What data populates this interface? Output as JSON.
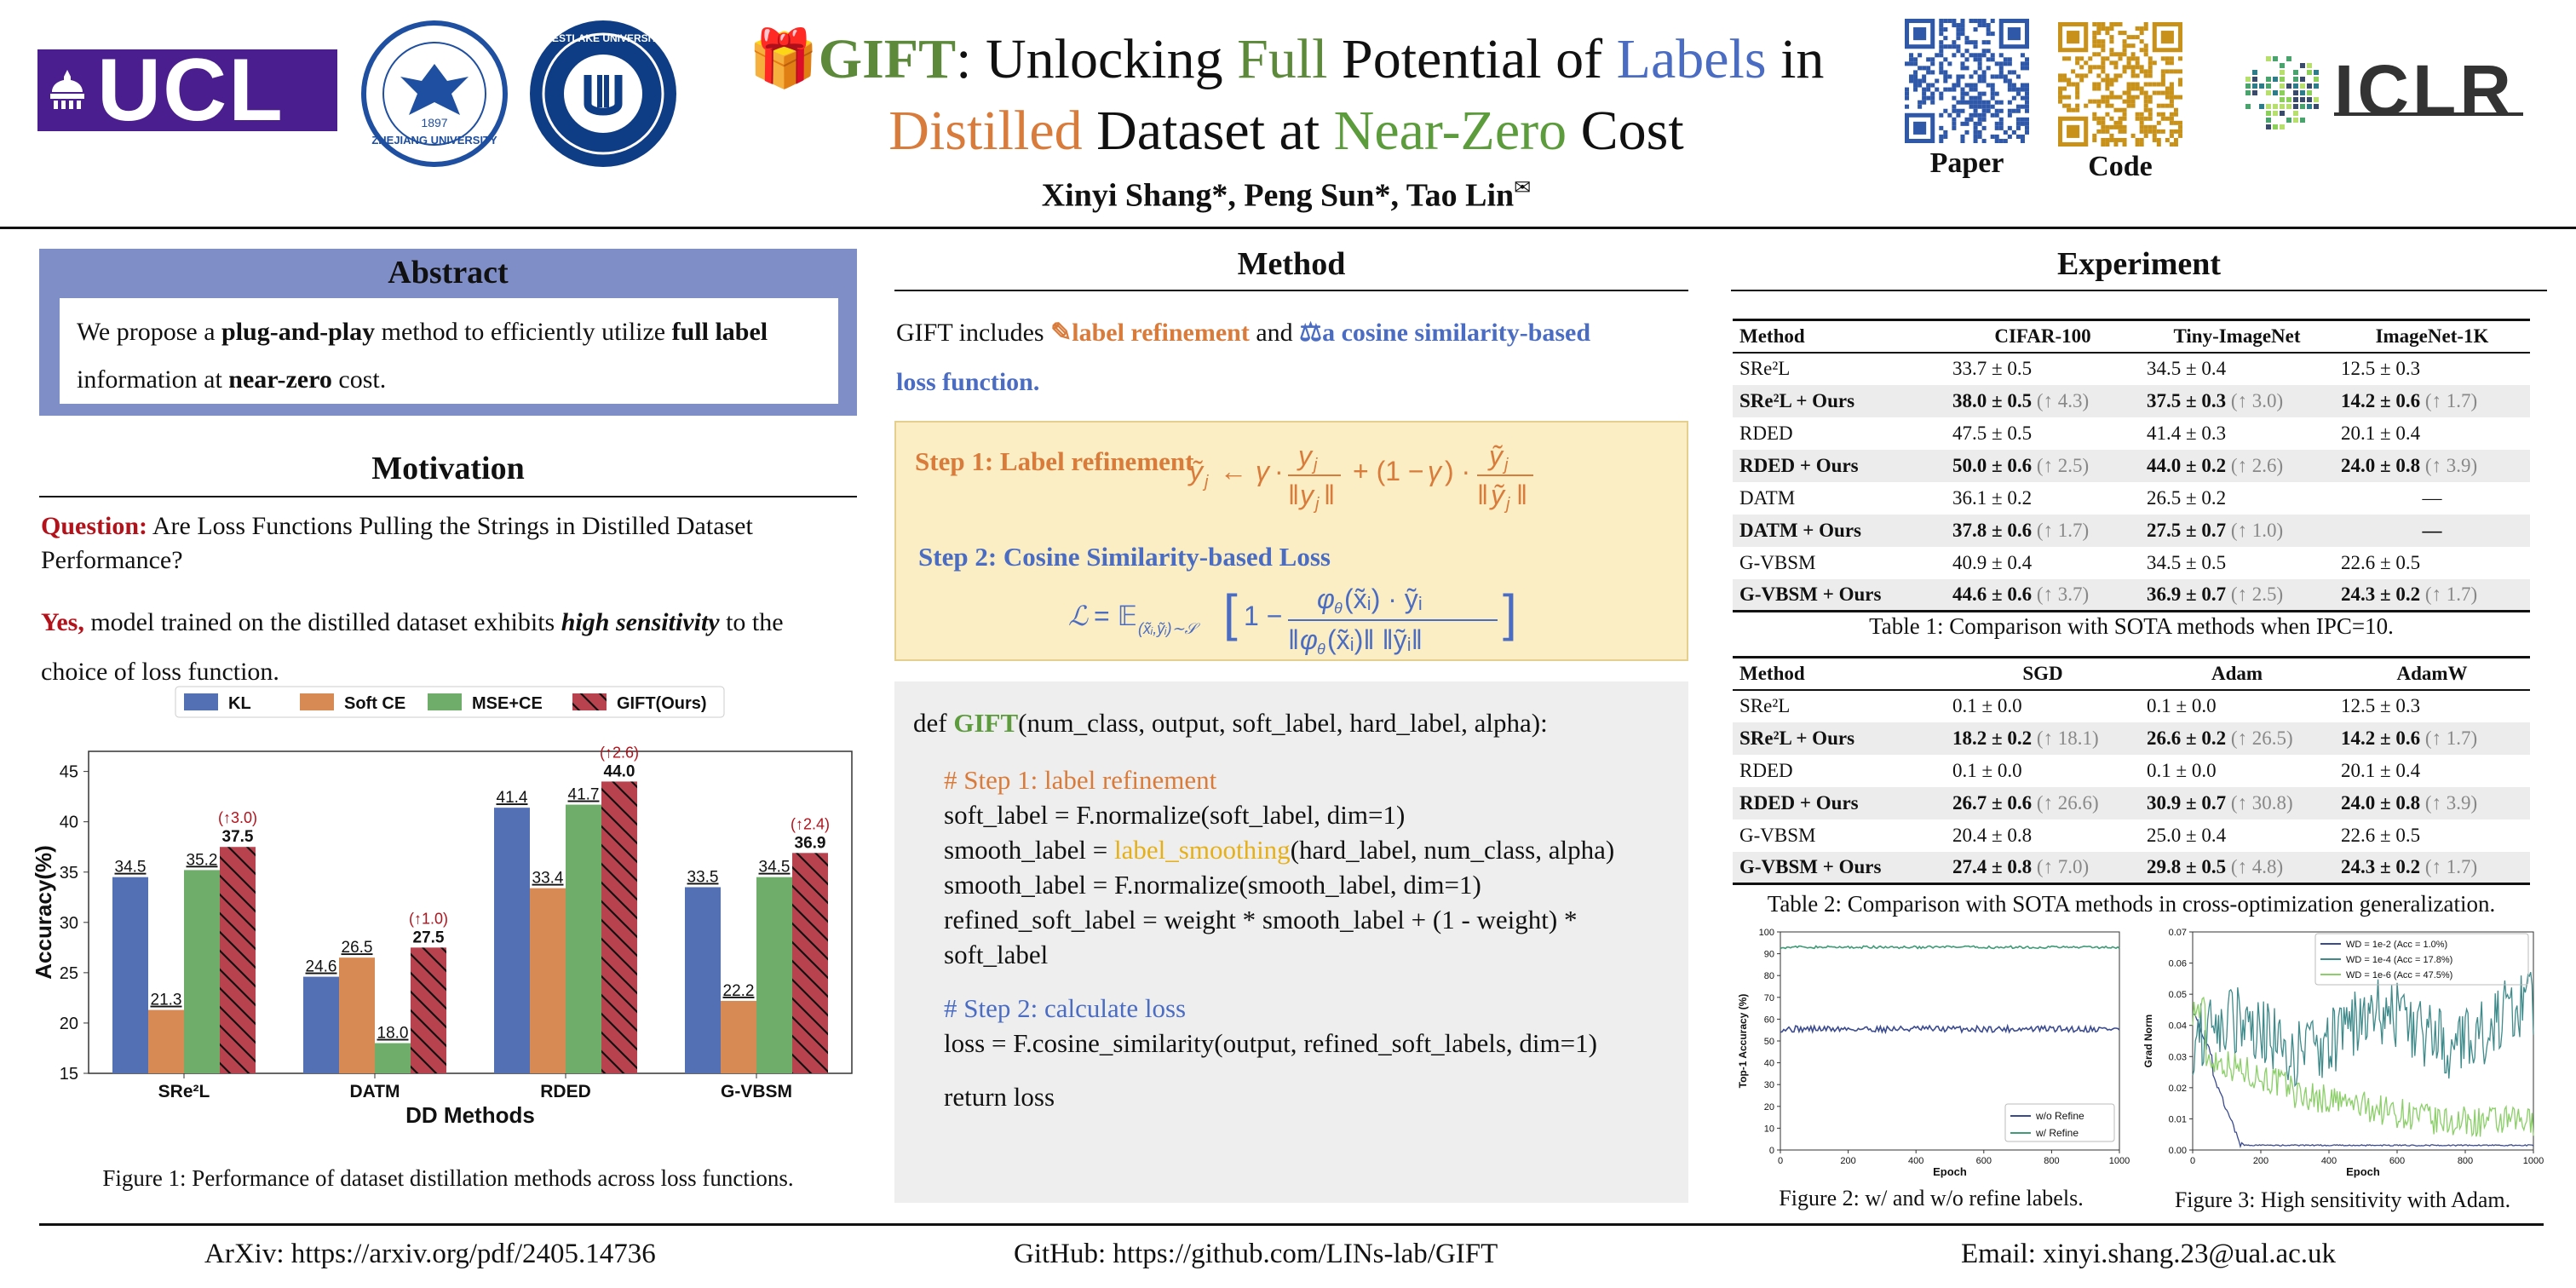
{
  "header": {
    "ucl_logo": "UCL",
    "zju_seal": "ZHEJIANG UNIVERSITY",
    "zju_year": "1897",
    "westlake_seal": "WESTLAKE UNIVERSITY",
    "title": {
      "gift": "GIFT",
      "p1": ": Unlocking ",
      "full": "Full",
      "p2": " Potential of ",
      "labels": "Labels",
      "p3": " in",
      "distilled": "Distilled",
      "p4": " Dataset at ",
      "near_zero": "Near-Zero",
      "p5": " Cost"
    },
    "authors": "Xinyi Shang*, Peng Sun*, Tao Lin",
    "author_mark": "✉",
    "paper_label": "Paper",
    "code_label": "Code",
    "iclr": "ICLR",
    "colors": {
      "green": "#5c8a3a",
      "blue": "#4a6cc2",
      "orange": "#d97b3a",
      "purple": "#4b1e8f"
    }
  },
  "abstract": {
    "heading": "Abstract",
    "t1": "We propose a ",
    "b1": "plug-and-play",
    "t2": " method to efficiently utilize ",
    "b2": "full label",
    "t3": "information at ",
    "b3": "near-zero",
    "t4": " cost."
  },
  "motivation": {
    "heading": "Motivation",
    "q_label": "Question:",
    "q_text": " Are Loss Functions Pulling the Strings in Distilled Dataset Performance?",
    "yes_label": "Yes,",
    "yes_t1": " model trained on the distilled dataset exhibits ",
    "yes_bold": "high sensitivity",
    "yes_t2": " to the",
    "yes_t3": "choice of loss function.",
    "figure_caption": "Figure 1: Performance of dataset distillation methods across loss functions."
  },
  "method": {
    "heading": "Method",
    "intro_t1": "GIFT includes ",
    "intro_label_ref": "label refinement",
    "intro_and": " and ",
    "intro_cos": "a cosine similarity-based",
    "intro_loss": "loss function.",
    "step1_label": "Step 1: Label refinement",
    "step2_label": "Step 2: Cosine Similarity-based Loss",
    "code": {
      "def1": "def ",
      "gift": "GIFT",
      "def2": "(num_class, output, soft_label, hard_label, alpha):",
      "c1": "# Step 1: label refinement",
      "l1": "soft_label = F.normalize(soft_label, dim=1)",
      "l2a": "smooth_label = ",
      "l2b": "label_smoothing",
      "l2c": "(hard_label, num_class, alpha)",
      "l3": "smooth_label = F.normalize(smooth_label, dim=1)",
      "l4": "refined_soft_label = weight * smooth_label + (1 - weight) *",
      "l5": "soft_label",
      "c2": "# Step 2: calculate loss",
      "l6": "loss = F.cosine_similarity(output, refined_soft_labels, dim=1)",
      "l7": "return loss"
    }
  },
  "experiment": {
    "heading": "Experiment",
    "table1": {
      "headers": [
        "Method",
        "CIFAR-100",
        "Tiny-ImageNet",
        "ImageNet-1K"
      ],
      "rows": [
        {
          "m": "SRe²L",
          "a": "33.7 ± 0.5",
          "ag": "",
          "b": "34.5 ± 0.4",
          "bg": "",
          "c": "12.5 ± 0.3",
          "cg": "",
          "ours": false
        },
        {
          "m": "SRe²L + Ours",
          "a": "38.0 ± 0.5",
          "ag": " (↑ 4.3)",
          "b": "37.5 ± 0.3",
          "bg": " (↑ 3.0)",
          "c": "14.2 ± 0.6",
          "cg": " (↑ 1.7)",
          "ours": true
        },
        {
          "m": "RDED",
          "a": "47.5 ± 0.5",
          "ag": "",
          "b": "41.4 ± 0.3",
          "bg": "",
          "c": "20.1 ± 0.4",
          "cg": "",
          "ours": false
        },
        {
          "m": "RDED + Ours",
          "a": "50.0 ± 0.6",
          "ag": " (↑ 2.5)",
          "b": "44.0 ± 0.2",
          "bg": " (↑ 2.6)",
          "c": "24.0 ± 0.8",
          "cg": " (↑ 3.9)",
          "ours": true
        },
        {
          "m": "DATM",
          "a": "36.1 ± 0.2",
          "ag": "",
          "b": "26.5 ± 0.2",
          "bg": "",
          "c": "—",
          "cg": "",
          "ours": false
        },
        {
          "m": "DATM + Ours",
          "a": "37.8 ± 0.6",
          "ag": " (↑ 1.7)",
          "b": "27.5 ± 0.7",
          "bg": " (↑ 1.0)",
          "c": "—",
          "cg": "",
          "ours": true
        },
        {
          "m": "G-VBSM",
          "a": "40.9 ± 0.4",
          "ag": "",
          "b": "34.5 ± 0.5",
          "bg": "",
          "c": "22.6 ± 0.5",
          "cg": "",
          "ours": false
        },
        {
          "m": "G-VBSM + Ours",
          "a": "44.6 ± 0.6",
          "ag": " (↑ 3.7)",
          "b": "36.9 ± 0.7",
          "bg": " (↑ 2.5)",
          "c": "24.3 ± 0.2",
          "cg": " (↑ 1.7)",
          "ours": true
        }
      ],
      "caption": "Table 1: Comparison with SOTA methods when IPC=10."
    },
    "table2": {
      "headers": [
        "Method",
        "SGD",
        "Adam",
        "AdamW"
      ],
      "rows": [
        {
          "m": "SRe²L",
          "a": "0.1 ± 0.0",
          "ag": "",
          "b": "0.1 ± 0.0",
          "bg": "",
          "c": "12.5 ± 0.3",
          "cg": "",
          "ours": false
        },
        {
          "m": "SRe²L + Ours",
          "a": "18.2 ± 0.2",
          "ag": " (↑ 18.1)",
          "b": "26.6 ± 0.2",
          "bg": " (↑ 26.5)",
          "c": "14.2 ± 0.6",
          "cg": " (↑ 1.7)",
          "ours": true
        },
        {
          "m": "RDED",
          "a": "0.1 ± 0.0",
          "ag": "",
          "b": "0.1 ± 0.0",
          "bg": "",
          "c": "20.1 ± 0.4",
          "cg": "",
          "ours": false
        },
        {
          "m": "RDED + Ours",
          "a": "26.7 ± 0.6",
          "ag": " (↑ 26.6)",
          "b": "30.9 ± 0.7",
          "bg": " (↑ 30.8)",
          "c": "24.0 ± 0.8",
          "cg": " (↑ 3.9)",
          "ours": true
        },
        {
          "m": "G-VBSM",
          "a": "20.4 ± 0.8",
          "ag": "",
          "b": "25.0 ± 0.4",
          "bg": "",
          "c": "22.6 ± 0.5",
          "cg": "",
          "ours": false
        },
        {
          "m": "G-VBSM + Ours",
          "a": "27.4 ± 0.8",
          "ag": " (↑ 7.0)",
          "b": "29.8 ± 0.5",
          "bg": " (↑ 4.8)",
          "c": "24.3 ± 0.2",
          "cg": " (↑ 1.7)",
          "ours": true
        }
      ],
      "caption": "Table 2: Comparison with SOTA methods in cross-optimization generalization."
    },
    "fig2_caption": "Figure 2: w/ and w/o refine labels.",
    "fig3_caption": "Figure 3: High sensitivity with Adam."
  },
  "footer": {
    "arxiv": "ArXiv: https://arxiv.org/pdf/2405.14736",
    "github": "GitHub: https://github.com/LINs-lab/GIFT",
    "email": "Email: xinyi.shang.23@ual.ac.uk"
  },
  "chart_data": [
    {
      "type": "bar",
      "title": "",
      "xlabel": "DD Methods",
      "ylabel": "Accuracy(%)",
      "ylim": [
        15,
        47
      ],
      "yticks": [
        15,
        20,
        25,
        30,
        35,
        40,
        45
      ],
      "categories": [
        "SRe²L",
        "DATM",
        "RDED",
        "G-VBSM"
      ],
      "legend_position": "top",
      "series": [
        {
          "name": "KL",
          "color": "#5470b4",
          "values": [
            34.5,
            24.6,
            41.4,
            33.5
          ]
        },
        {
          "name": "Soft CE",
          "color": "#d88a55",
          "values": [
            21.3,
            26.5,
            33.4,
            22.2
          ]
        },
        {
          "name": "MSE+CE",
          "color": "#6fae6a",
          "values": [
            35.2,
            18.0,
            41.7,
            34.5
          ]
        },
        {
          "name": "GIFT(Ours)",
          "color": "#b8434f",
          "hatch": true,
          "values": [
            37.5,
            27.5,
            44.0,
            36.9
          ]
        }
      ],
      "annotations": [
        "(↑3.0)",
        "(↑1.0)",
        "(↑2.6)",
        "(↑2.4)"
      ]
    },
    {
      "type": "line",
      "xlabel": "Epoch",
      "ylabel": "Top-1 Accuracy (%)",
      "xlim": [
        0,
        1000
      ],
      "ylim": [
        0,
        100
      ],
      "xticks": [
        0,
        200,
        400,
        600,
        800,
        1000
      ],
      "yticks": [
        0,
        10,
        20,
        30,
        40,
        50,
        60,
        70,
        80,
        90,
        100
      ],
      "legend_position": "bottom-right",
      "series": [
        {
          "name": "w/o Refine",
          "color": "#3a4a8f",
          "level": 55.5,
          "jitter": 1.5
        },
        {
          "name": "w/ Refine",
          "color": "#3f9b78",
          "level": 93,
          "jitter": 0.6
        }
      ]
    },
    {
      "type": "line",
      "xlabel": "Epoch",
      "ylabel": "Grad Norm",
      "xlim": [
        0,
        1000
      ],
      "ylim": [
        0,
        0.07
      ],
      "xticks": [
        0,
        200,
        400,
        600,
        800,
        1000
      ],
      "yticks": [
        0.0,
        0.01,
        0.02,
        0.03,
        0.04,
        0.05,
        0.06,
        0.07
      ],
      "legend_position": "top-right",
      "series": [
        {
          "name": "WD = 1e-2 (Acc = 1.0%)",
          "color": "#3a4a8f"
        },
        {
          "name": "WD = 1e-4 (Acc = 17.8%)",
          "color": "#3f8a8a"
        },
        {
          "name": "WD = 1e-6 (Acc = 47.5%)",
          "color": "#8ccf6a"
        }
      ]
    }
  ]
}
